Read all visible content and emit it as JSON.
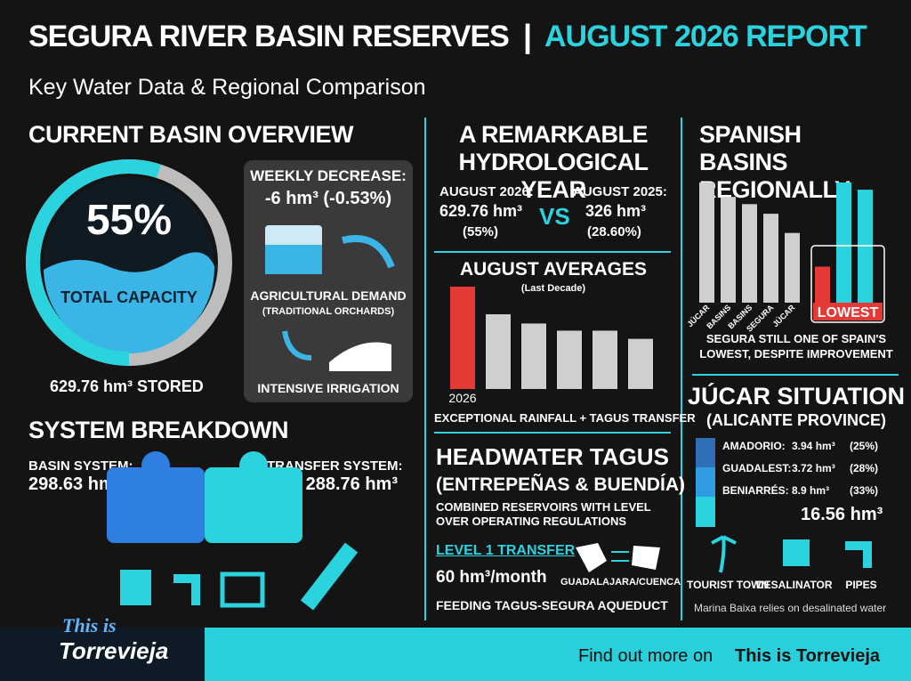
{
  "header": {
    "title": "SEGURA RIVER BASIN RESERVES",
    "divider": "|",
    "report": "AUGUST 2026 REPORT",
    "subtitle": "Key Water Data & Regional Comparison"
  },
  "overview": {
    "heading": "CURRENT BASIN OVERVIEW",
    "gauge_value": 55,
    "gauge_label": "55%",
    "gauge_caption": "TOTAL CAPACITY",
    "stored": "629.76 hm³ STORED",
    "weekly_title": "WEEKLY DECREASE:",
    "weekly_value": "-6 hm³ (-0.53%)",
    "demand": "AGRICULTURAL DEMAND",
    "demand_note": "(TRADITIONAL ORCHARDS)",
    "irrigation": "INTENSIVE IRRIGATION"
  },
  "breakdown": {
    "heading": "SYSTEM BREAKDOWN",
    "basin_label": "BASIN SYSTEM:",
    "basin_value": "298.63 hm³",
    "transfer_label": "TRANSFER SYSTEM:",
    "transfer_value": "288.76 hm³"
  },
  "year": {
    "heading": "A REMARKABLE HYDROLOGICAL YEAR",
    "left_label": "AUGUST 2026:",
    "left_value": "629.76 hm³",
    "left_pct": "(55%)",
    "vs": "VS",
    "right_label": "AUGUST 2025:",
    "right_value": "326 hm³",
    "right_pct": "(28.60%)"
  },
  "averages": {
    "heading": "AUGUST AVERAGES",
    "subheading": "(Last Decade)",
    "categories": [
      "2026",
      null,
      null,
      null,
      null,
      null
    ],
    "values": [
      100,
      73,
      64,
      57,
      57,
      49
    ],
    "caption": "EXCEPTIONAL RAINFALL + TAGUS TRANSFER"
  },
  "tagus": {
    "heading": "HEADWATER TAGUS",
    "subheading": "(ENTREPEÑAS & BUENDÍA)",
    "description": "COMBINED RESERVOIRS WITH LEVEL OVER OPERATING REGULATIONS",
    "level": "LEVEL 1 TRANSFER",
    "rate": "60 hm³/month",
    "places": "GUADALAJARA/CUENCA",
    "feeding": "FEEDING TAGUS-SEGURA AQUEDUCT"
  },
  "basins": {
    "heading": "SPANISH BASINS REGIONALLY",
    "categories": [
      "JÚCAR",
      "BASINS",
      "BASINS",
      "SEGURA",
      "JÚCAR",
      null,
      null,
      null
    ],
    "values": [
      100,
      88,
      82,
      74,
      58,
      30,
      100,
      94
    ],
    "highlight": "LOWEST",
    "caption": "SEGURA STILL ONE OF SPAIN'S LOWEST, DESPITE IMPROVEMENT"
  },
  "jucar": {
    "heading": "JÚCAR SITUATION",
    "subheading": "(ALICANTE PROVINCE)",
    "reservoirs": [
      {
        "name": "AMADORIO:",
        "volume": "3.94 hm³",
        "pct": "(25%)"
      },
      {
        "name": "GUADALEST:",
        "volume": "3.72 hm³",
        "pct": "(28%)"
      },
      {
        "name": "BENIARRÉS:",
        "volume": "8.9 hm³",
        "pct": "(33%)"
      }
    ],
    "total": "16.56 hm³",
    "icons": [
      "TOURIST TOWN",
      "DESALINATOR",
      "PIPES"
    ],
    "note": "Marina Baixa relies on desalinated water"
  },
  "footer": {
    "brand_top": "This is",
    "brand_name": "Torrevieja",
    "cta": "Find out more on",
    "cta_bold": "This is Torrevieja"
  }
}
